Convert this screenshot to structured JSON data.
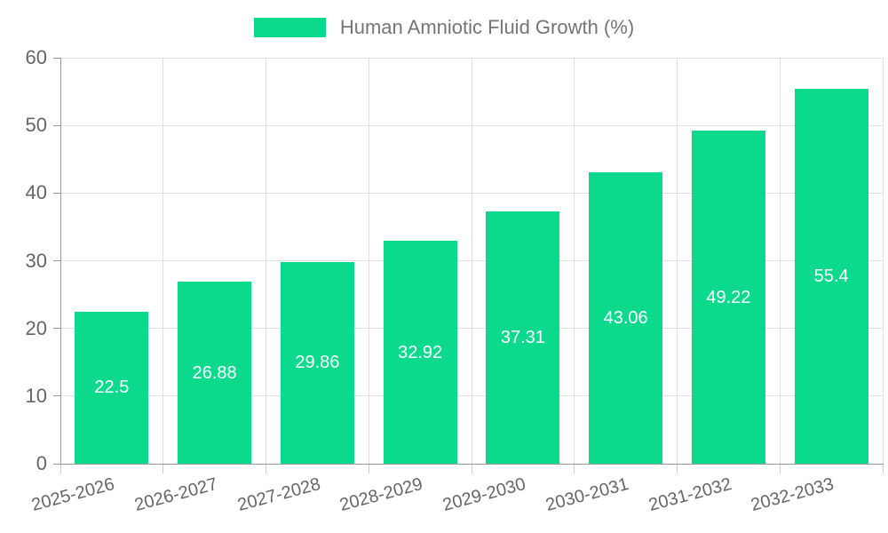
{
  "legend": {
    "label": "Human Amniotic Fluid Growth (%)"
  },
  "chart_data": {
    "type": "bar",
    "title": "Human Amniotic Fluid Growth (%)",
    "categories": [
      "2025-2026",
      "2026-2027",
      "2027-2028",
      "2028-2029",
      "2029-2030",
      "2030-2031",
      "2031-2032",
      "2032-2033"
    ],
    "values": [
      22.5,
      26.88,
      29.86,
      32.92,
      37.31,
      43.06,
      49.22,
      55.4
    ],
    "value_labels": [
      "22.5",
      "26.88",
      "29.86",
      "32.92",
      "37.31",
      "43.06",
      "49.22",
      "55.4"
    ],
    "xlabel": "",
    "ylabel": "",
    "ylim": [
      0,
      60
    ],
    "y_ticks": [
      0,
      10,
      20,
      30,
      40,
      50,
      60
    ],
    "y_tick_labels": [
      "0",
      "10",
      "20",
      "30",
      "40",
      "50",
      "60"
    ],
    "grid": true,
    "legend_position": "top-center",
    "x_tick_rotation_deg": -15,
    "value_label_position": "inside-middle"
  },
  "colors": {
    "bar": "#0bd98c",
    "value_label": "#ffffff",
    "legend_text": "#757575",
    "axis_label": "#666666",
    "axis_line": "#999999",
    "gridline": "#e0e0e0",
    "x_tick": "#cccccc",
    "background": "#ffffff"
  }
}
